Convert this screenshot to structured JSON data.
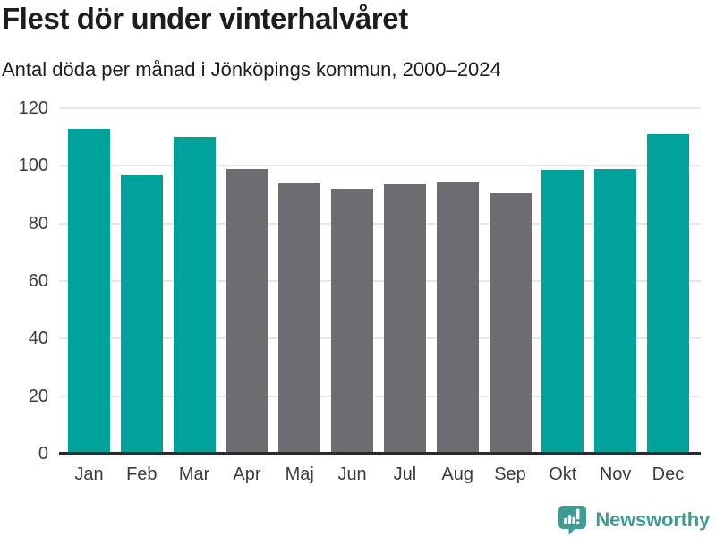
{
  "header": {
    "title": "Flest dör under vinterhalvåret",
    "subtitle": "Antal döda per månad i Jönköpings kommun, 2000–2024"
  },
  "chart_data": {
    "type": "bar",
    "title": "Flest dör under vinterhalvåret",
    "subtitle": "Antal döda per månad i Jönköpings kommun, 2000–2024",
    "categories": [
      "Jan",
      "Feb",
      "Mar",
      "Apr",
      "Maj",
      "Jun",
      "Jul",
      "Aug",
      "Sep",
      "Okt",
      "Nov",
      "Dec"
    ],
    "values": [
      113,
      97,
      110,
      99,
      94,
      92,
      93.5,
      94.5,
      90.5,
      98.5,
      99,
      111
    ],
    "series_note": "winter half-year months highlighted in teal, summer months gray",
    "bar_colors": [
      "teal",
      "teal",
      "teal",
      "gray",
      "gray",
      "gray",
      "gray",
      "gray",
      "gray",
      "teal",
      "teal",
      "teal"
    ],
    "xlabel": "",
    "ylabel": "",
    "ylim": [
      0,
      120
    ],
    "yticks": [
      0,
      20,
      40,
      60,
      80,
      100,
      120
    ],
    "grid": true,
    "legend": "none",
    "colors": {
      "highlight_teal": "#00a29b",
      "neutral_gray": "#6d6d71",
      "gridline": "#e6e6e6",
      "axis_line": "#2b2b2b",
      "tick_label": "#3c3c3c"
    }
  },
  "footer": {
    "brand": "Newsworthy",
    "brand_color": "#3f9b94",
    "logo_icon": "bar-chart-speech-bubble-icon"
  }
}
